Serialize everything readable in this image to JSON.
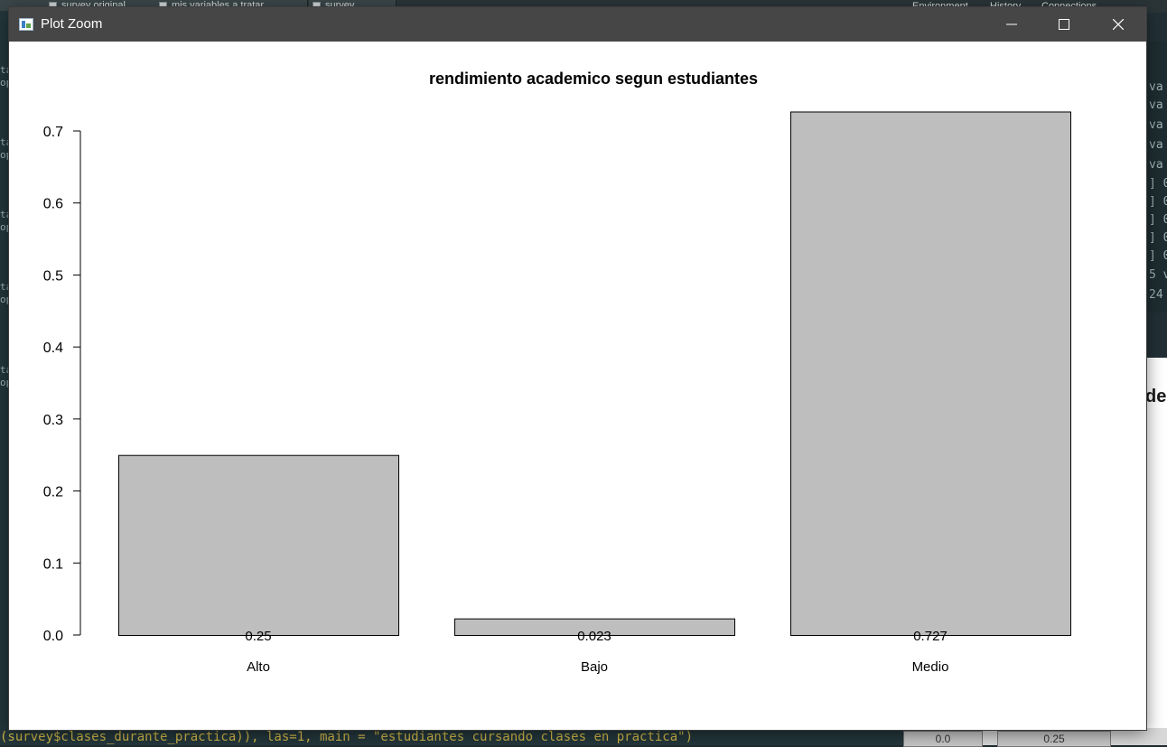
{
  "window": {
    "title": "Plot Zoom",
    "controls": {
      "minimize": "minimize-icon",
      "maximize": "maximize-icon",
      "close": "close-icon"
    }
  },
  "chart_data": {
    "type": "bar",
    "title": "rendimiento academico segun estudiantes",
    "categories": [
      "Alto",
      "Bajo",
      "Medio"
    ],
    "values": [
      0.25,
      0.023,
      0.727
    ],
    "data_labels": [
      "0.25",
      "0.023",
      "0.727"
    ],
    "ylim": [
      0,
      0.7
    ],
    "yticks": [
      0.0,
      0.1,
      0.2,
      0.3,
      0.4,
      0.5,
      0.6,
      0.7
    ],
    "ytick_labels": [
      "0.0",
      "0.1",
      "0.2",
      "0.3",
      "0.4",
      "0.5",
      "0.6",
      "0.7"
    ],
    "xlabel": "",
    "ylabel": "",
    "bar_color": "#bebebe",
    "grid": false,
    "legend": "none"
  },
  "background": {
    "editor_tabs": [
      "survey original",
      "mis variables a tratar",
      "survey"
    ],
    "right_pane_tabs": [
      "Environment",
      "History",
      "Connections"
    ],
    "console_lines": [
      "va",
      "va",
      "va",
      "va",
      "va",
      "] 0",
      "] 0",
      "] 0",
      "] 0",
      "] 0",
      "5 v",
      "24"
    ],
    "bottom_command": "(survey$clases_durante_practica)), las=1, main = \"estudiantes cursando clases en practica\")",
    "right_plot_fragment": "de",
    "bottom_cells": [
      "0.0",
      "0.25"
    ]
  }
}
